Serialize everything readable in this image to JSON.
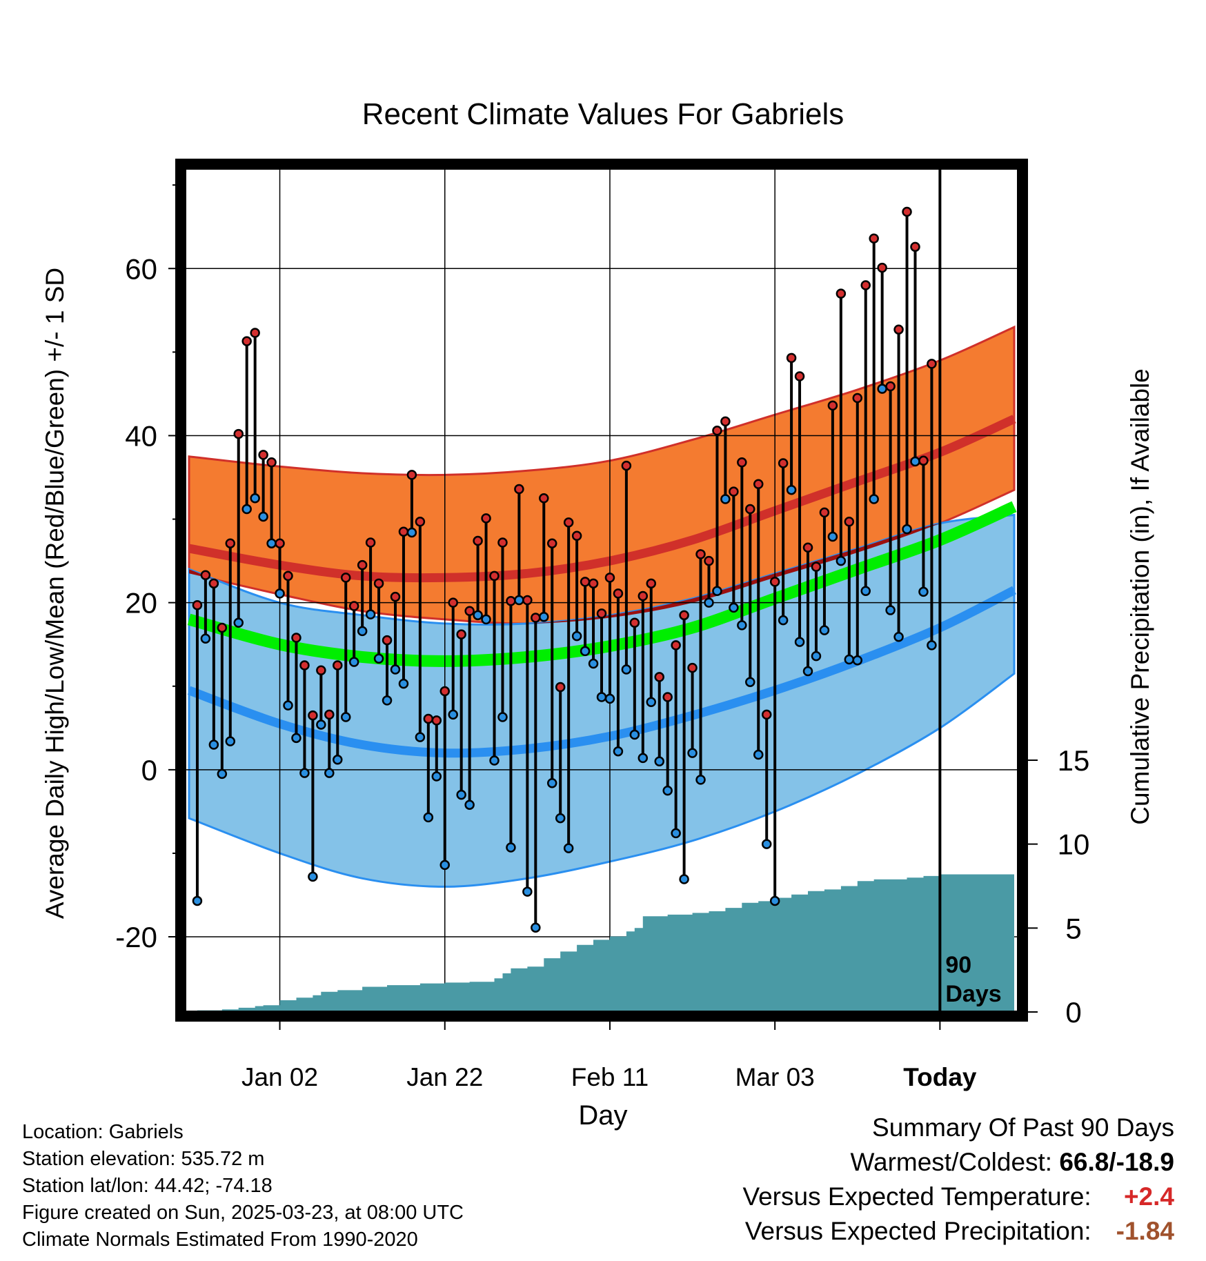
{
  "chart_data": {
    "type": "line",
    "title": "Recent Climate Values For Gabriels",
    "xlabel": "Day",
    "ylabel": "Average Daily High/Low/Mean (Red/Blue/Green) +/- 1 SD",
    "y2label": "Cumulative Precipitation (in), If Available",
    "x_ticks": [
      "Jan 02",
      "Jan 22",
      "Feb 11",
      "Mar 03",
      "Today"
    ],
    "x_tick_days": [
      10,
      30,
      50,
      70,
      90
    ],
    "x_range": [
      -1.5,
      99.5
    ],
    "y_ticks": [
      -20,
      0,
      20,
      40,
      60
    ],
    "ylim": [
      -29,
      72
    ],
    "y2_ticks": [
      0,
      5,
      10,
      15
    ],
    "y2lim": [
      0,
      15
    ],
    "today_day": 90,
    "today_label": [
      "90",
      "Days"
    ],
    "normal_high": {
      "days": [
        -1,
        10,
        20,
        30,
        40,
        50,
        60,
        70,
        80,
        90,
        99
      ],
      "mean": [
        26.5,
        24.5,
        23.2,
        23.0,
        23.5,
        25.0,
        27.5,
        31.0,
        34.5,
        38.0,
        42.0
      ],
      "upper": [
        37.5,
        36.3,
        35.5,
        35.3,
        35.8,
        37.0,
        39.5,
        42.5,
        45.5,
        49.0,
        53.0
      ],
      "lower": [
        23.5,
        21.0,
        19.0,
        18.0,
        17.5,
        18.2,
        20.0,
        23.0,
        26.0,
        29.5,
        33.5
      ]
    },
    "normal_low": {
      "days": [
        -1,
        10,
        20,
        30,
        40,
        50,
        60,
        70,
        80,
        90,
        99
      ],
      "mean": [
        9.5,
        5.5,
        3.0,
        2.0,
        2.5,
        4.0,
        6.5,
        9.5,
        13.0,
        17.0,
        21.5
      ],
      "upper": [
        24.0,
        20.0,
        18.5,
        17.5,
        17.5,
        18.5,
        20.5,
        23.5,
        26.5,
        29.5,
        30.5
      ],
      "lower": [
        -5.8,
        -10.0,
        -13.0,
        -14.0,
        -13.0,
        -11.0,
        -8.5,
        -5.0,
        -0.5,
        5.0,
        11.5
      ]
    },
    "normal_mean": {
      "days": [
        -1,
        10,
        20,
        30,
        40,
        50,
        60,
        70,
        80,
        90,
        99
      ],
      "values": [
        18.0,
        15.0,
        13.5,
        13.0,
        13.5,
        14.8,
        17.0,
        20.5,
        24.0,
        27.5,
        31.5
      ]
    },
    "daily_high": [
      19.7,
      23.3,
      22.3,
      17.0,
      27.1,
      40.2,
      51.3,
      52.3,
      37.7,
      36.8,
      27.1,
      23.2,
      15.8,
      12.5,
      6.5,
      11.9,
      6.6,
      12.5,
      23.0,
      19.6,
      24.5,
      27.2,
      22.3,
      15.5,
      20.7,
      28.5,
      35.3,
      29.7,
      6.1,
      5.9,
      9.4,
      20.0,
      16.2,
      19.0,
      27.4,
      30.1,
      23.2,
      27.2,
      20.2,
      33.6,
      20.3,
      18.2,
      32.5,
      27.1,
      9.9,
      29.6,
      28.0,
      22.5,
      22.3,
      18.7,
      23.0,
      21.1,
      36.4,
      17.6,
      20.8,
      22.3,
      11.1,
      8.7,
      14.9,
      18.5,
      12.2,
      25.8,
      25.0,
      40.6,
      41.7,
      33.3,
      36.8,
      31.2,
      34.2,
      6.6,
      22.5,
      36.7,
      49.3,
      47.1,
      26.6,
      24.3,
      30.8,
      43.6,
      57.0,
      29.7,
      44.5,
      58.0,
      63.6,
      60.1,
      45.9,
      52.7,
      66.8,
      62.6,
      37.0,
      48.6
    ],
    "daily_low": [
      -15.7,
      15.7,
      3.0,
      -0.5,
      3.4,
      17.6,
      31.2,
      32.5,
      30.3,
      27.1,
      21.1,
      7.7,
      3.8,
      -0.4,
      -12.8,
      5.4,
      -0.4,
      1.2,
      6.3,
      12.9,
      16.6,
      18.6,
      13.3,
      8.3,
      12.0,
      10.3,
      28.4,
      3.9,
      -5.7,
      -0.8,
      -11.4,
      6.6,
      -3.0,
      -4.2,
      18.5,
      18.0,
      1.1,
      6.3,
      -9.3,
      20.3,
      -14.6,
      -18.9,
      18.3,
      -1.6,
      -5.8,
      -9.4,
      16.0,
      14.2,
      12.7,
      8.7,
      8.5,
      2.2,
      12.0,
      4.2,
      1.4,
      8.1,
      1.0,
      -2.5,
      -7.6,
      -13.1,
      2.0,
      -1.2,
      20.0,
      21.4,
      32.4,
      19.4,
      17.3,
      10.5,
      1.8,
      -8.9,
      -15.7,
      17.9,
      33.5,
      15.3,
      11.8,
      13.6,
      16.7,
      27.9,
      25.0,
      13.2,
      13.1,
      21.4,
      32.4,
      45.6,
      19.1,
      15.9,
      28.8,
      36.9,
      21.3,
      14.9
    ],
    "cumulative_precip": {
      "days": [
        0,
        3,
        5,
        7,
        8,
        10,
        12,
        14,
        15,
        17,
        20,
        23,
        27,
        30,
        33,
        36,
        37,
        38,
        40,
        42,
        44,
        46,
        48,
        50,
        52,
        53,
        54,
        57,
        60,
        62,
        64,
        66,
        68,
        70,
        72,
        74,
        76,
        78,
        80,
        82,
        84,
        86,
        88,
        90,
        99
      ],
      "values": [
        0.1,
        0.15,
        0.25,
        0.35,
        0.4,
        0.7,
        0.85,
        1.0,
        1.2,
        1.3,
        1.5,
        1.6,
        1.7,
        1.75,
        1.8,
        2.0,
        2.3,
        2.6,
        2.7,
        3.2,
        3.6,
        4.0,
        4.3,
        4.5,
        4.8,
        5.0,
        5.7,
        5.8,
        5.9,
        6.0,
        6.2,
        6.5,
        6.6,
        6.8,
        7.0,
        7.2,
        7.3,
        7.5,
        7.8,
        7.9,
        7.9,
        8.0,
        8.1,
        8.2,
        8.2
      ]
    },
    "colors": {
      "high_band": "#f47b30",
      "high_line": "#d0302a",
      "low_band": "#84c2e8",
      "low_line": "#2a8ff0",
      "overlap": "#9b1010",
      "mean_line": "#00ee00",
      "precip": "#4a9aa5",
      "high_dot": "#d32f2f",
      "low_dot": "#2a8fe0"
    }
  },
  "info": {
    "location": "Location: Gabriels",
    "elevation": "Station elevation: 535.72 m",
    "latlon": "Station lat/lon: 44.42; -74.18",
    "created": "Figure created on Sun, 2025-03-23, at 08:00 UTC",
    "normals": "Climate Normals Estimated From 1990-2020"
  },
  "summary": {
    "title": "Summary Of Past 90 Days",
    "warmest_label": "Warmest/Coldest:",
    "warmest_value": "66.8/-18.9",
    "temp_label": "Versus Expected Temperature:",
    "temp_value": "+2.4",
    "precip_label": "Versus Expected Precipitation:",
    "precip_value": "-1.84"
  }
}
